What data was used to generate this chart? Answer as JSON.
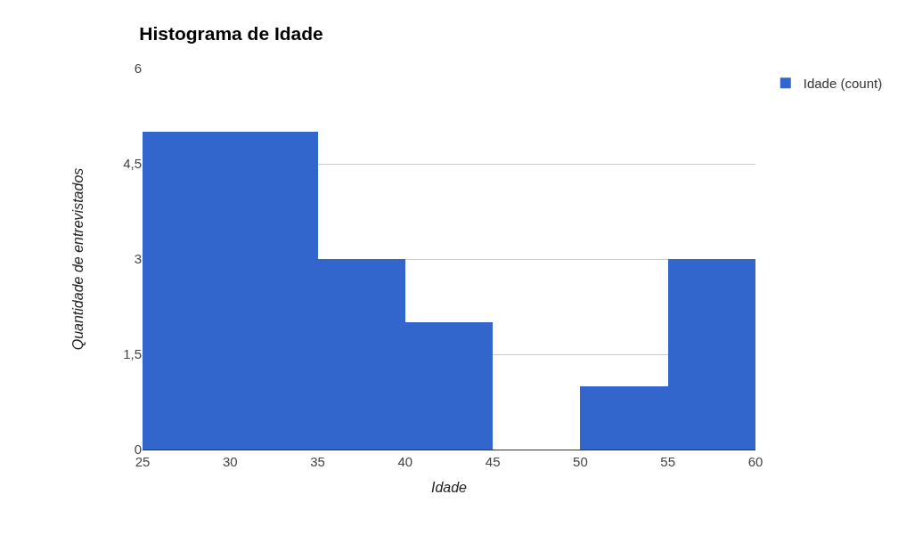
{
  "chart_data": {
    "type": "histogram",
    "title": "Histograma de Idade",
    "xlabel": "Idade",
    "ylabel": "Quantidade de entrevistados",
    "bins": [
      25,
      30,
      35,
      40,
      45,
      50,
      55,
      60
    ],
    "series": [
      {
        "name": "Idade (count)",
        "color": "#3366cc",
        "values": [
          5,
          5,
          3,
          2,
          0,
          1,
          3
        ]
      }
    ],
    "xlim": [
      25,
      60
    ],
    "xticks": [
      25,
      30,
      35,
      40,
      45,
      50,
      55,
      60
    ],
    "ylim": [
      0,
      6
    ],
    "yticks": [
      0,
      {
        "value": 1.5,
        "label": "1,5"
      },
      3,
      {
        "value": 4.5,
        "label": "4,5"
      },
      6
    ],
    "grid": "y",
    "legend": "top right"
  }
}
